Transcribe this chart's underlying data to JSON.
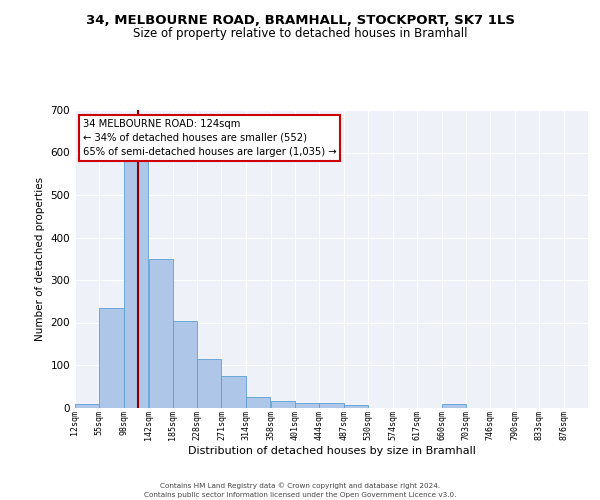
{
  "title1": "34, MELBOURNE ROAD, BRAMHALL, STOCKPORT, SK7 1LS",
  "title2": "Size of property relative to detached houses in Bramhall",
  "xlabel": "Distribution of detached houses by size in Bramhall",
  "ylabel": "Number of detached properties",
  "bin_labels": [
    "12sqm",
    "55sqm",
    "98sqm",
    "142sqm",
    "185sqm",
    "228sqm",
    "271sqm",
    "314sqm",
    "358sqm",
    "401sqm",
    "444sqm",
    "487sqm",
    "530sqm",
    "574sqm",
    "617sqm",
    "660sqm",
    "703sqm",
    "746sqm",
    "790sqm",
    "833sqm",
    "876sqm"
  ],
  "bin_edges": [
    12,
    55,
    98,
    142,
    185,
    228,
    271,
    314,
    358,
    401,
    444,
    487,
    530,
    574,
    617,
    660,
    703,
    746,
    790,
    833,
    876
  ],
  "bar_heights": [
    8,
    233,
    583,
    350,
    203,
    114,
    73,
    25,
    15,
    10,
    10,
    5,
    0,
    0,
    0,
    8,
    0,
    0,
    0,
    0,
    0
  ],
  "bar_color": "#aec6e8",
  "bar_edge_color": "#5a9fd4",
  "property_size": 124,
  "vline_color": "#8b0000",
  "annotation_line1": "34 MELBOURNE ROAD: 124sqm",
  "annotation_line2": "← 34% of detached houses are smaller (552)",
  "annotation_line3": "65% of semi-detached houses are larger (1,035) →",
  "annotation_box_color": "#ffffff",
  "annotation_box_edge": "#cc0000",
  "ylim": [
    0,
    700
  ],
  "yticks": [
    0,
    100,
    200,
    300,
    400,
    500,
    600,
    700
  ],
  "footer1": "Contains HM Land Registry data © Crown copyright and database right 2024.",
  "footer2": "Contains public sector information licensed under the Open Government Licence v3.0.",
  "bg_color": "#eef2f8",
  "title1_fontsize": 9.5,
  "title2_fontsize": 8.5
}
